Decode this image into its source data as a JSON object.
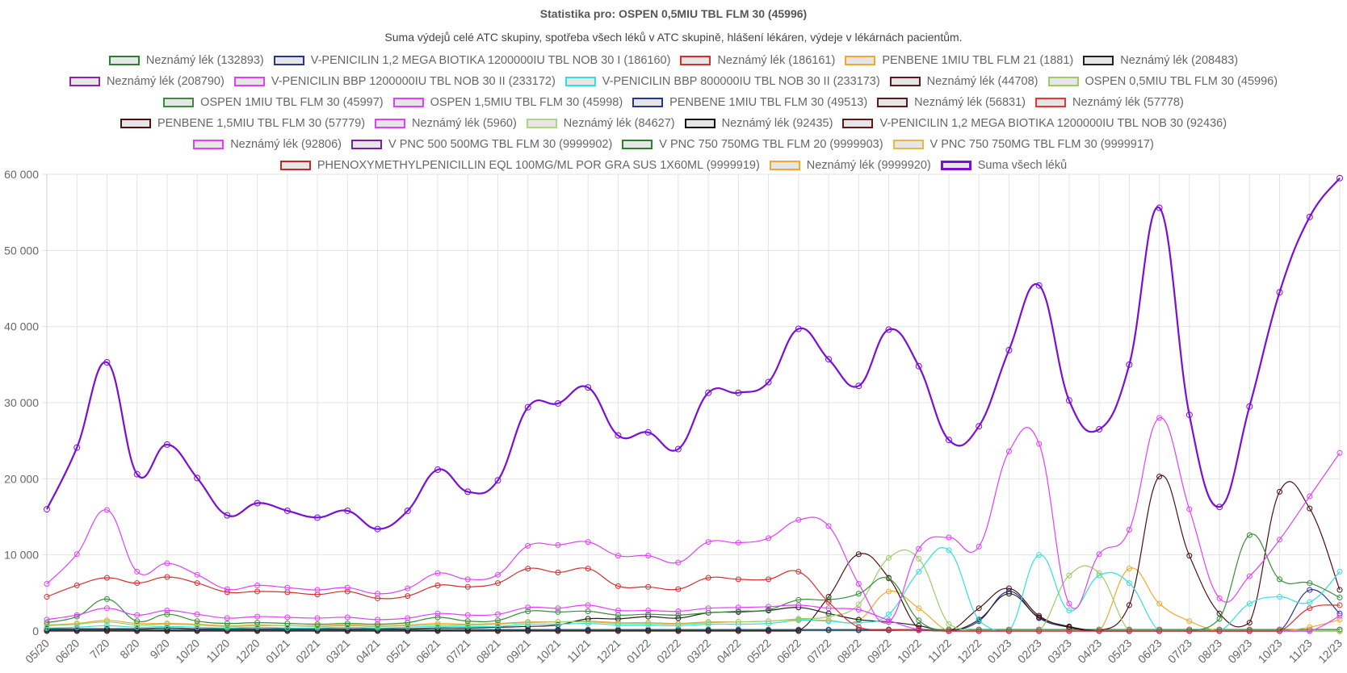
{
  "title": "Statistika pro: OSPEN 0,5MIU TBL FLM 30 (45996)",
  "subtitle": "Suma výdejů celé ATC skupiny, spotřeba všech léků v ATC skupině, hlášení lékáren, výdeje v lékárnách pacientům.",
  "legend_rows": [
    [
      {
        "label": "Neznámý lék (132893)",
        "color": "#2e7d32"
      },
      {
        "label": "V-PENICILIN 1,2 MEGA BIOTIKA 1200000IU TBL NOB 30 I (186160)",
        "color": "#283593"
      },
      {
        "label": "Neznámý lék (186161)",
        "color": "#d32f2f"
      },
      {
        "label": "PENBENE 1MIU TBL FLM 21 (1881)",
        "color": "#f0a830"
      },
      {
        "label": "Neznámý lék (208483)",
        "color": "#222222"
      }
    ],
    [
      {
        "label": "Neznámý lék (208790)",
        "color": "#8e24aa"
      },
      {
        "label": "V-PENICILIN BBP 1200000IU TBL NOB 30 II (233172)",
        "color": "#e040fb"
      },
      {
        "label": "V-PENICILIN BBP 800000IU TBL NOB 30 II (233173)",
        "color": "#33e0e0"
      },
      {
        "label": "Neznámý lék (44708)",
        "color": "#5d1a1a"
      },
      {
        "label": "OSPEN 0,5MIU TBL FLM 30 (45996)",
        "color": "#9ccc65"
      }
    ],
    [
      {
        "label": "OSPEN 1MIU TBL FLM 30 (45997)",
        "color": "#388e3c"
      },
      {
        "label": "OSPEN 1,5MIU TBL FLM 30 (45998)",
        "color": "#e040fb"
      },
      {
        "label": "PENBENE 1MIU TBL FLM 30 (49513)",
        "color": "#283593"
      },
      {
        "label": "Neznámý lék (56831)",
        "color": "#5d1a1a"
      },
      {
        "label": "Neznámý lék (57778)",
        "color": "#e53935"
      }
    ],
    [
      {
        "label": "PENBENE 1,5MIU TBL FLM 30 (57779)",
        "color": "#4e1010"
      },
      {
        "label": "Neznámý lék (5960)",
        "color": "#e040fb"
      },
      {
        "label": "Neznámý lék (84627)",
        "color": "#aed581"
      },
      {
        "label": "Neznámý lék (92435)",
        "color": "#111111"
      },
      {
        "label": "V-PENICILIN 1,2 MEGA BIOTIKA 1200000IU TBL NOB 30 (92436)",
        "color": "#5d1a1a"
      }
    ],
    [
      {
        "label": "Neznámý lék (92806)",
        "color": "#e040fb"
      },
      {
        "label": "V PNC 500 500MG TBL FLM 30 (9999902)",
        "color": "#7b1fa2"
      },
      {
        "label": "V PNC 750 750MG TBL FLM 20 (9999903)",
        "color": "#2e7d32"
      },
      {
        "label": "V PNC 750 750MG TBL FLM 30 (9999917)",
        "color": "#e6b84a"
      }
    ],
    [
      {
        "label": "PHENOXYMETHYLPENICILLIN EQL 100MG/ML POR GRA SUS 1X60ML (9999919)",
        "color": "#c62828"
      },
      {
        "label": "Neznámý lék (9999920)",
        "color": "#f0a830"
      },
      {
        "label": "Suma všech léků",
        "color": "#7a0fd6",
        "thick": true
      }
    ]
  ],
  "chart_data": {
    "type": "line",
    "y_axis": {
      "min": 0,
      "max": 60000,
      "ticks": [
        "0",
        "10 000",
        "20 000",
        "30 000",
        "40 000",
        "50 000",
        "60 000"
      ]
    },
    "categories": [
      "05/20",
      "06/20",
      "7/20",
      "8/20",
      "9/20",
      "10/20",
      "11/20",
      "12/20",
      "01/21",
      "02/21",
      "03/21",
      "04/21",
      "05/21",
      "06/21",
      "07/21",
      "08/21",
      "09/21",
      "10/21",
      "11/21",
      "12/21",
      "01/22",
      "02/22",
      "03/22",
      "04/22",
      "05/22",
      "06/22",
      "07/22",
      "08/22",
      "09/22",
      "10/22",
      "11/22",
      "12/22",
      "01/23",
      "02/23",
      "03/23",
      "04/23",
      "05/23",
      "06/23",
      "07/23",
      "08/23",
      "09/23",
      "10/23",
      "11/23",
      "12/23"
    ],
    "series": [
      {
        "name": "Suma všech léků",
        "color": "#7a0fd6",
        "width": 2.2,
        "values": [
          16000,
          24100,
          35300,
          20600,
          24500,
          20100,
          15200,
          16800,
          15800,
          14900,
          15800,
          13400,
          15800,
          21200,
          18300,
          19800,
          29400,
          29900,
          32000,
          25700,
          26100,
          23900,
          31300,
          31300,
          32700,
          39700,
          35700,
          32200,
          39600,
          34800,
          25100,
          26900,
          36900,
          45400,
          30300,
          26500,
          35000,
          55600,
          28400,
          16300,
          29500,
          44500,
          54400,
          59500
        ]
      },
      {
        "name": "V-PENICILIN BBP 1200000IU TBL NOB 30 II (233172)",
        "color": "#e040fb",
        "width": 1.2,
        "values": [
          6200,
          10100,
          15900,
          7800,
          8900,
          7400,
          5500,
          6000,
          5700,
          5400,
          5700,
          4900,
          5600,
          7600,
          6800,
          7400,
          11200,
          11300,
          11700,
          9900,
          9900,
          9000,
          11700,
          11600,
          12200,
          14600,
          13800,
          6200,
          1200,
          10800,
          12300,
          11100,
          23600,
          24600,
          3600,
          10100,
          13300,
          28000,
          16000,
          4300,
          7200,
          12000,
          17700,
          23400
        ]
      },
      {
        "name": "Neznámý lék (186161)",
        "color": "#d32f2f",
        "width": 1.2,
        "values": [
          4500,
          6000,
          7000,
          6300,
          7100,
          6300,
          5100,
          5200,
          5100,
          4800,
          5200,
          4300,
          4600,
          6000,
          5800,
          6300,
          8200,
          7700,
          8200,
          5900,
          5800,
          5500,
          7000,
          6800,
          6800,
          7800,
          3800,
          500,
          200,
          100,
          0,
          0,
          0,
          0,
          0,
          0,
          0,
          0,
          0,
          0,
          0,
          0,
          3000,
          3400
        ]
      },
      {
        "name": "Neznámý lék (5960)",
        "color": "#e040fb",
        "width": 1.2,
        "values": [
          1500,
          2100,
          3000,
          2100,
          2700,
          2200,
          1700,
          1900,
          1800,
          1700,
          1800,
          1500,
          1700,
          2300,
          2100,
          2200,
          3100,
          3000,
          3400,
          2700,
          2700,
          2600,
          3000,
          3100,
          3200,
          3400,
          3000,
          2800,
          1400,
          200,
          0,
          0,
          0,
          0,
          0,
          0,
          0,
          0,
          0,
          0,
          0,
          0,
          0,
          2000
        ]
      },
      {
        "name": "OSPEN 1MIU TBL FLM 30 (45997)",
        "color": "#388e3c",
        "width": 1.2,
        "values": [
          1100,
          1900,
          4200,
          1300,
          2200,
          1300,
          1000,
          1100,
          1000,
          900,
          1000,
          900,
          1100,
          1800,
          1300,
          1400,
          2600,
          2500,
          2600,
          2100,
          2200,
          2100,
          2400,
          2600,
          2800,
          4100,
          4100,
          4900,
          6900,
          1400,
          0,
          0,
          0,
          0,
          0,
          0,
          0,
          0,
          0,
          1600,
          12600,
          6800,
          6300,
          4400
        ]
      },
      {
        "name": "Neznámý lék (84627)",
        "color": "#9ccc65",
        "width": 1.2,
        "values": [
          700,
          900,
          1200,
          800,
          900,
          800,
          600,
          700,
          700,
          600,
          700,
          600,
          700,
          800,
          800,
          900,
          1100,
          1200,
          1200,
          1000,
          1000,
          900,
          1100,
          1200,
          1300,
          1600,
          1900,
          3500,
          9600,
          9500,
          900,
          0,
          0,
          0,
          7300,
          7600,
          0,
          0,
          0,
          0,
          0,
          0,
          0,
          0
        ]
      },
      {
        "name": "V-PENICILIN BBP 800000IU TBL NOB 30 II (233173)",
        "color": "#33e0e0",
        "width": 1.2,
        "values": [
          400,
          500,
          700,
          500,
          600,
          500,
          400,
          500,
          400,
          400,
          500,
          400,
          500,
          600,
          600,
          600,
          900,
          900,
          1000,
          800,
          800,
          700,
          900,
          900,
          1000,
          1400,
          1300,
          1100,
          2200,
          7800,
          10600,
          1400,
          0,
          10000,
          2700,
          7300,
          6300,
          0,
          0,
          0,
          3600,
          4500,
          3800,
          7800
        ]
      },
      {
        "name": "Neznámý lék (44708)",
        "color": "#4e1010",
        "width": 1.2,
        "values": [
          0,
          0,
          0,
          0,
          0,
          0,
          0,
          0,
          0,
          0,
          0,
          0,
          0,
          0,
          0,
          0,
          0,
          0,
          0,
          0,
          0,
          0,
          0,
          0,
          0,
          0,
          4500,
          10100,
          7000,
          300,
          0,
          3000,
          5600,
          2000,
          500,
          0,
          3400,
          20300,
          9900,
          2300,
          1100,
          18300,
          16100,
          5400
        ]
      },
      {
        "name": "PENBENE 1,5MIU TBL FLM 30 (57779)",
        "color": "#222222",
        "width": 1.2,
        "values": [
          300,
          300,
          300,
          300,
          400,
          300,
          300,
          300,
          300,
          300,
          300,
          300,
          300,
          400,
          400,
          500,
          600,
          800,
          1600,
          1600,
          1900,
          1700,
          2400,
          2500,
          2700,
          3100,
          2300,
          1500,
          1200,
          700,
          0,
          1500,
          4900,
          1800,
          600,
          0,
          0,
          0,
          0,
          0,
          0,
          0,
          0,
          0
        ]
      },
      {
        "name": "PENBENE 1MIU TBL FLM 30 (49513)",
        "color": "#283593",
        "width": 1.2,
        "values": [
          100,
          100,
          100,
          100,
          100,
          100,
          100,
          100,
          100,
          100,
          100,
          100,
          100,
          100,
          100,
          100,
          100,
          100,
          100,
          100,
          100,
          100,
          100,
          100,
          100,
          100,
          100,
          100,
          100,
          100,
          0,
          1300,
          5200,
          1700,
          500,
          0,
          0,
          0,
          0,
          0,
          0,
          0,
          5400,
          2300
        ]
      },
      {
        "name": "Neznámý lék (9999920)",
        "color": "#f0a830",
        "width": 1.2,
        "values": [
          800,
          1000,
          1400,
          1000,
          1000,
          900,
          700,
          800,
          700,
          700,
          800,
          700,
          800,
          1000,
          900,
          1000,
          1200,
          1200,
          1300,
          1100,
          1100,
          1000,
          1200,
          1200,
          1300,
          1500,
          1400,
          1400,
          5200,
          3000,
          0,
          0,
          0,
          0,
          0,
          0,
          8200,
          3600,
          1300,
          0,
          0,
          0,
          500,
          1500
        ]
      },
      {
        "name": "Neznámý lék (132893)",
        "color": "#2e7d32",
        "width": 1.2,
        "values": [
          200,
          200,
          200,
          200,
          200,
          200,
          200,
          200,
          200,
          200,
          200,
          200,
          200,
          200,
          200,
          200,
          200,
          200,
          200,
          200,
          200,
          200,
          200,
          200,
          200,
          200,
          200,
          200,
          200,
          200,
          200,
          200,
          200,
          200,
          200,
          200,
          200,
          200,
          200,
          200,
          200,
          200,
          200,
          200
        ]
      }
    ]
  }
}
